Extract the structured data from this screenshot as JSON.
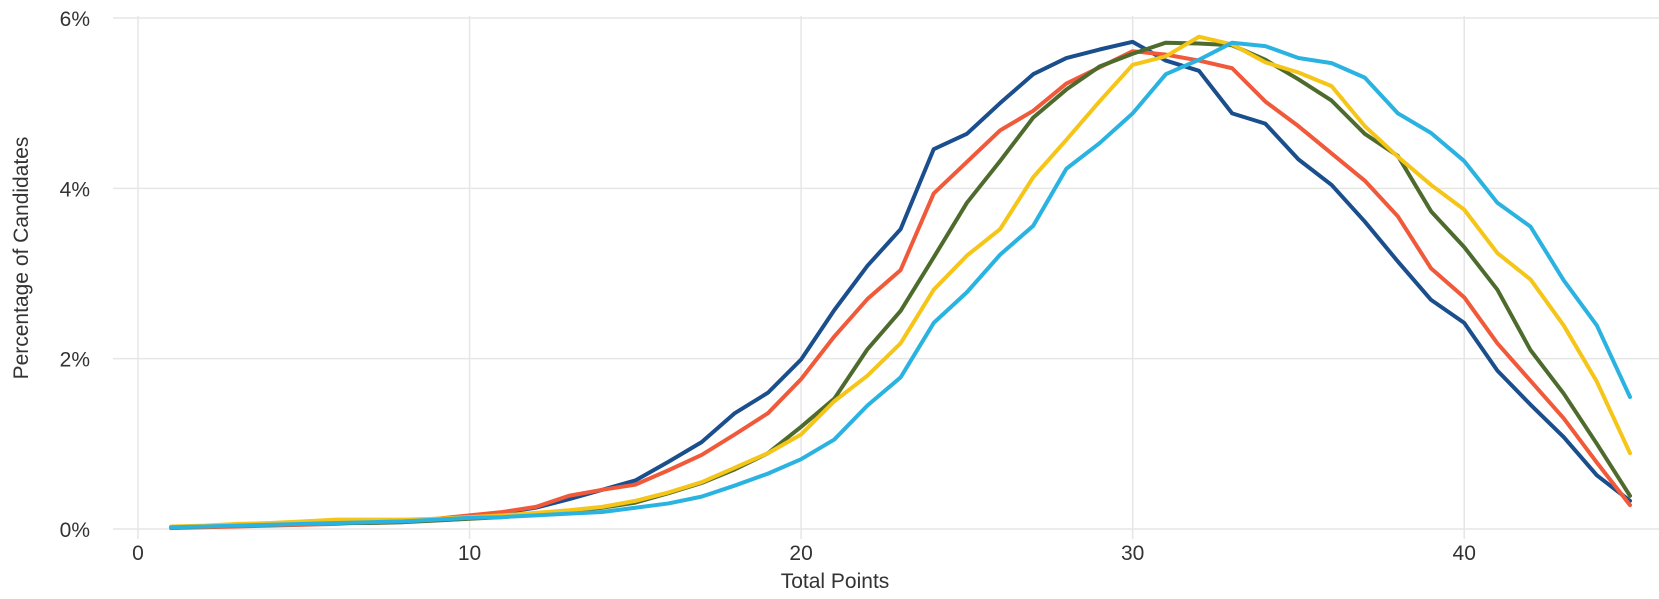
{
  "chart_data": {
    "type": "line",
    "title": "",
    "xlabel": "Total Points",
    "ylabel": "Percentage of Candidates",
    "xlim": [
      0,
      45
    ],
    "ylim": [
      0,
      6
    ],
    "x_ticks": [
      0,
      10,
      20,
      30,
      40
    ],
    "x_tick_labels": [
      "0",
      "10",
      "20",
      "30",
      "40"
    ],
    "y_ticks": [
      0,
      2,
      4,
      6
    ],
    "y_tick_labels": [
      "0%",
      "2%",
      "4%",
      "6%"
    ],
    "grid": true,
    "legend": "none",
    "x": [
      1,
      2,
      3,
      4,
      5,
      6,
      7,
      8,
      9,
      10,
      11,
      12,
      13,
      14,
      15,
      16,
      17,
      18,
      19,
      20,
      21,
      22,
      23,
      24,
      25,
      26,
      27,
      28,
      29,
      30,
      31,
      32,
      33,
      34,
      35,
      36,
      37,
      38,
      39,
      40,
      41,
      42,
      43,
      44,
      45
    ],
    "series": [
      {
        "color": "#1b4e8c",
        "values": [
          0.02,
          0.03,
          0.04,
          0.05,
          0.06,
          0.07,
          0.08,
          0.09,
          0.11,
          0.15,
          0.19,
          0.25,
          0.35,
          0.46,
          0.57,
          0.79,
          1.02,
          1.36,
          1.6,
          1.99,
          2.57,
          3.09,
          3.52,
          4.46,
          4.64,
          5.0,
          5.34,
          5.53,
          5.63,
          5.72,
          5.5,
          5.38,
          4.88,
          4.76,
          4.34,
          4.04,
          3.61,
          3.14,
          2.69,
          2.42,
          1.86,
          1.46,
          1.08,
          0.63,
          0.33
        ]
      },
      {
        "color": "#f05a3a",
        "values": [
          0.01,
          0.02,
          0.03,
          0.04,
          0.05,
          0.06,
          0.08,
          0.1,
          0.12,
          0.16,
          0.2,
          0.26,
          0.39,
          0.46,
          0.52,
          0.69,
          0.87,
          1.11,
          1.36,
          1.76,
          2.26,
          2.7,
          3.04,
          3.94,
          4.31,
          4.68,
          4.91,
          5.23,
          5.42,
          5.61,
          5.57,
          5.5,
          5.41,
          5.02,
          4.73,
          4.41,
          4.09,
          3.67,
          3.06,
          2.72,
          2.18,
          1.74,
          1.3,
          0.78,
          0.28
        ]
      },
      {
        "color": "#4e6b2e",
        "values": [
          0.02,
          0.03,
          0.04,
          0.05,
          0.06,
          0.07,
          0.07,
          0.08,
          0.1,
          0.12,
          0.14,
          0.17,
          0.21,
          0.25,
          0.31,
          0.42,
          0.54,
          0.7,
          0.89,
          1.2,
          1.53,
          2.11,
          2.56,
          3.19,
          3.83,
          4.32,
          4.83,
          5.16,
          5.43,
          5.58,
          5.71,
          5.7,
          5.68,
          5.51,
          5.28,
          5.03,
          4.64,
          4.38,
          3.73,
          3.31,
          2.81,
          2.1,
          1.59,
          1.0,
          0.39
        ]
      },
      {
        "color": "#f5c518",
        "values": [
          0.03,
          0.04,
          0.06,
          0.07,
          0.09,
          0.11,
          0.11,
          0.11,
          0.12,
          0.14,
          0.16,
          0.19,
          0.22,
          0.26,
          0.33,
          0.43,
          0.55,
          0.72,
          0.89,
          1.11,
          1.5,
          1.8,
          2.18,
          2.81,
          3.21,
          3.52,
          4.13,
          4.57,
          5.02,
          5.45,
          5.55,
          5.78,
          5.69,
          5.48,
          5.36,
          5.2,
          4.73,
          4.37,
          4.04,
          3.75,
          3.24,
          2.93,
          2.39,
          1.73,
          0.89
        ]
      },
      {
        "color": "#2ab3e0",
        "values": [
          0.02,
          0.03,
          0.04,
          0.05,
          0.06,
          0.07,
          0.08,
          0.09,
          0.11,
          0.13,
          0.14,
          0.16,
          0.18,
          0.2,
          0.25,
          0.3,
          0.38,
          0.51,
          0.65,
          0.82,
          1.05,
          1.45,
          1.78,
          2.42,
          2.78,
          3.22,
          3.56,
          4.23,
          4.53,
          4.88,
          5.34,
          5.51,
          5.71,
          5.67,
          5.53,
          5.47,
          5.3,
          4.88,
          4.65,
          4.32,
          3.83,
          3.55,
          2.92,
          2.39,
          1.55
        ]
      }
    ]
  }
}
